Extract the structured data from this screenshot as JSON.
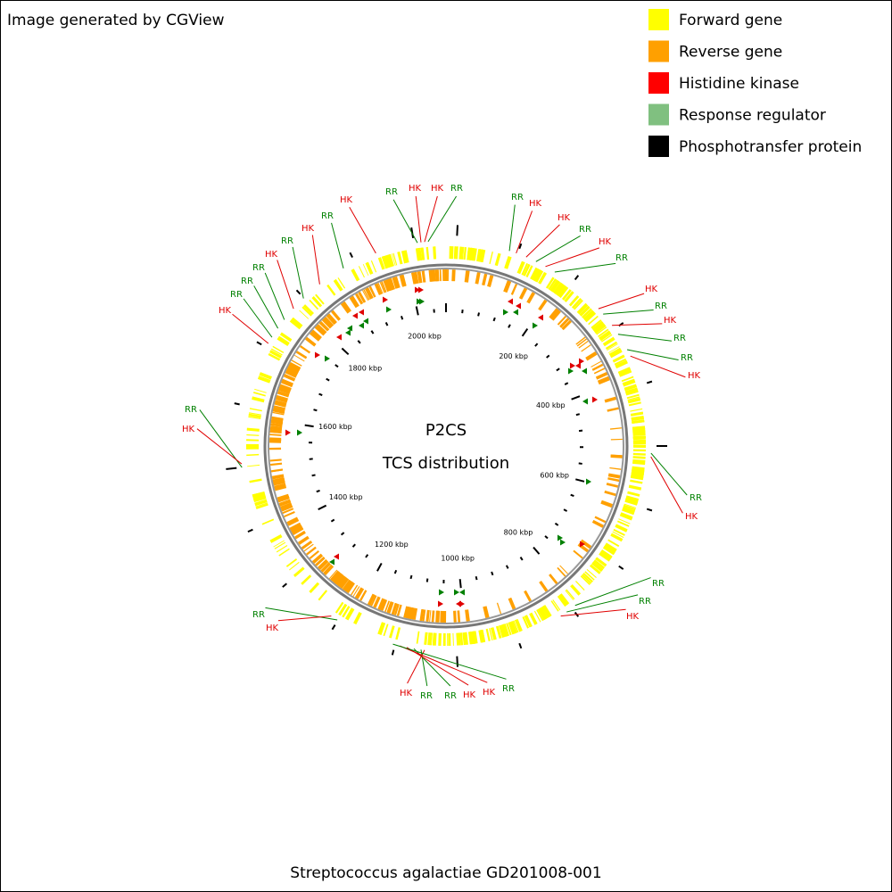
{
  "header": {
    "credit": "Image generated by CGView"
  },
  "legend": [
    {
      "label": "Forward gene",
      "color": "#ffff00"
    },
    {
      "label": "Reverse gene",
      "color": "#ffa000"
    },
    {
      "label": "Histidine kinase",
      "color": "#ff0000"
    },
    {
      "label": "Response regulator",
      "color": "#80c080"
    },
    {
      "label": "Phosphotransfer protein",
      "color": "#000000"
    }
  ],
  "map": {
    "title": "P2CS",
    "subtitle": "TCS distribution",
    "ticks": [
      "200 kbp",
      "400 kbp",
      "600 kbp",
      "800 kbp",
      "1000 kbp",
      "1200 kbp",
      "1400 kbp",
      "1600 kbp",
      "1800 kbp",
      "2000 kbp"
    ],
    "labels": [
      "RR",
      "HK",
      "HK",
      "RR",
      "RR",
      "HK",
      "HK",
      "RR",
      "HK",
      "RR",
      "HK",
      "RR",
      "HK",
      "RR",
      "RR",
      "HK",
      "RR",
      "HK",
      "RR",
      "RR",
      "HK",
      "HK",
      "RR",
      "RR",
      "HK",
      "HK",
      "RR",
      "RR",
      "HK",
      "RR",
      "HK",
      "HK",
      "RR",
      "RR",
      "RR",
      "HK",
      "RR",
      "HK",
      "RR",
      "HK"
    ]
  },
  "footer": {
    "organism": "Streptococcus agalactiae GD201008-001"
  }
}
